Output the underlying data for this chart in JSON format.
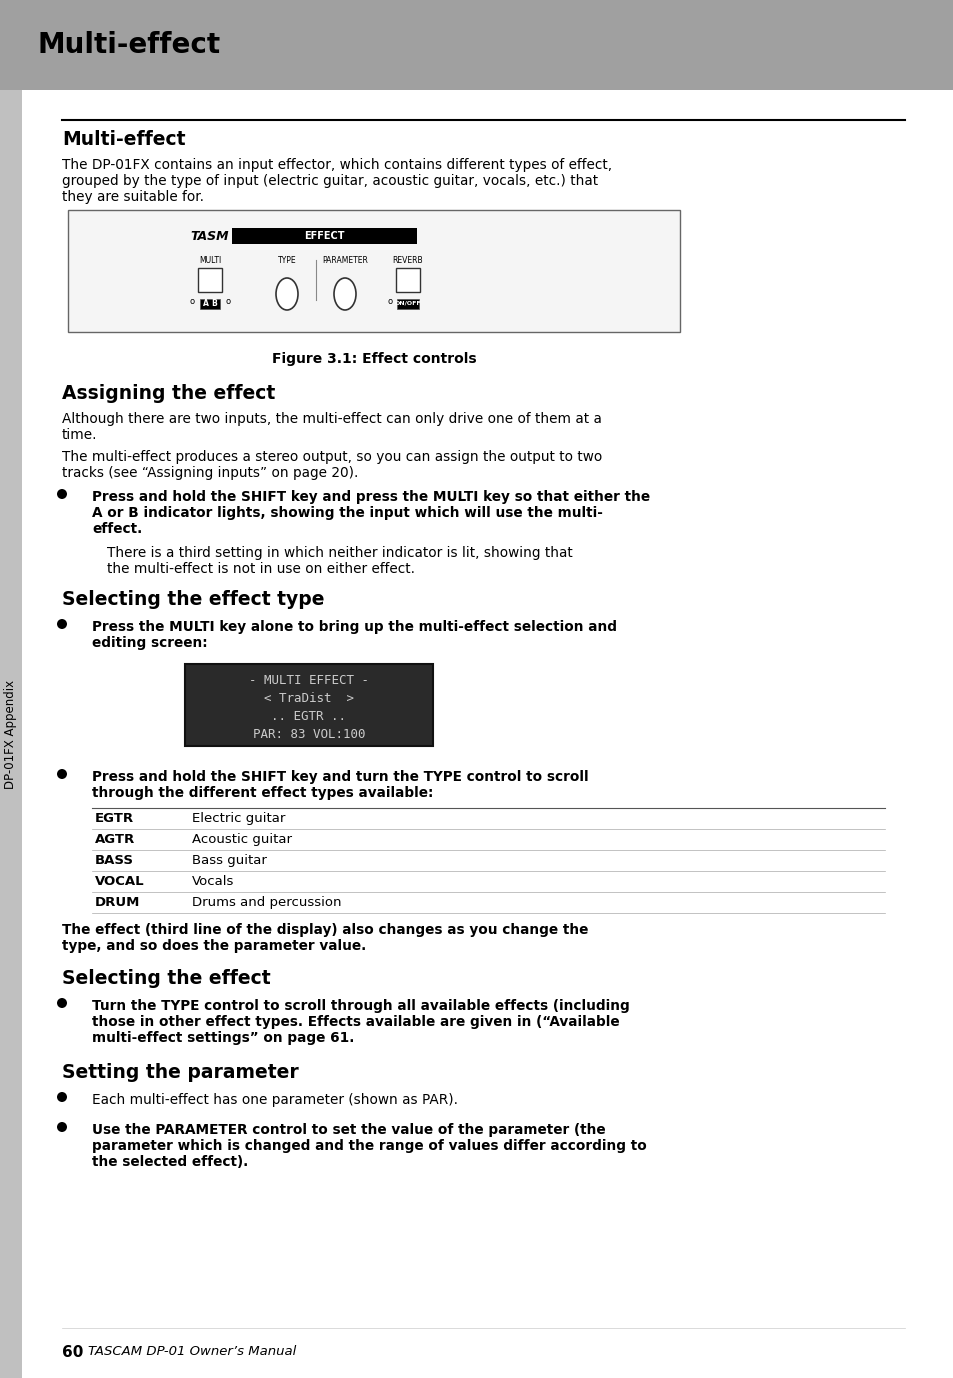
{
  "page_bg": "#ffffff",
  "header_bg": "#a0a0a0",
  "header_text": "Multi-effect",
  "sidebar_bg": "#c0c0c0",
  "sidebar_text": "DP-01FX Appendix",
  "section_title_1": "Multi-effect",
  "para_1a": "The DP-01FX contains an input effector, which contains different types of effect,",
  "para_1b": "grouped by the type of input (electric guitar, acoustic guitar, vocals, etc.) that",
  "para_1c": "they are suitable for.",
  "figure_caption": "Figure 3.1: Effect controls",
  "section_title_2": "Assigning the effect",
  "para_2a": "Although there are two inputs, the multi-effect can only drive one of them at a",
  "para_2b": "time.",
  "para_3a": "The multi-effect produces a stereo output, so you can assign the output to two",
  "para_3b": "tracks (see “Assigning inputs” on page 20).",
  "b1_line1": "Press and hold the SHIFT key and press the MULTI key so that either the",
  "b1_line2": "A or B indicator lights, showing the input which will use the multi-",
  "b1_line3": "effect.",
  "b1_sub1": "There is a third setting in which neither indicator is lit, showing that",
  "b1_sub2": "the multi-effect is not in use on either effect.",
  "section_title_3": "Selecting the effect type",
  "b2_line1": "Press the MULTI key alone to bring up the multi-effect selection and",
  "b2_line2": "editing screen:",
  "lcd_lines": [
    "- MULTI EFFECT -",
    "< TraDist  >",
    ".. EGTR ..",
    "PAR: 83 VOL:100"
  ],
  "b3_line1": "Press and hold the SHIFT key and turn the TYPE control to scroll",
  "b3_line2": "through the different effect types available:",
  "table_rows": [
    [
      "EGTR",
      "Electric guitar"
    ],
    [
      "AGTR",
      "Acoustic guitar"
    ],
    [
      "BASS",
      "Bass guitar"
    ],
    [
      "VOCAL",
      "Vocals"
    ],
    [
      "DRUM",
      "Drums and percussion"
    ]
  ],
  "p4_line1": "The effect (third line of the display) also changes as you change the",
  "p4_line2": "type, and so does the parameter value.",
  "section_title_4": "Selecting the effect",
  "b4_line1": "Turn the TYPE control to scroll through all available effects (including",
  "b4_line2": "those in other effect types. Effects available are given in (“Available",
  "b4_line3": "multi-effect settings” on page 61.",
  "section_title_5": "Setting the parameter",
  "b5a": "Each multi-effect has one parameter (shown as PAR).",
  "b5b_line1": "Use the PARAMETER control to set the value of the parameter (the",
  "b5b_line2": "parameter which is changed and the range of values differ according to",
  "b5b_line3": "the selected effect).",
  "footer_text": "60",
  "footer_text2": "TASCAM DP-01 Owner’s Manual"
}
